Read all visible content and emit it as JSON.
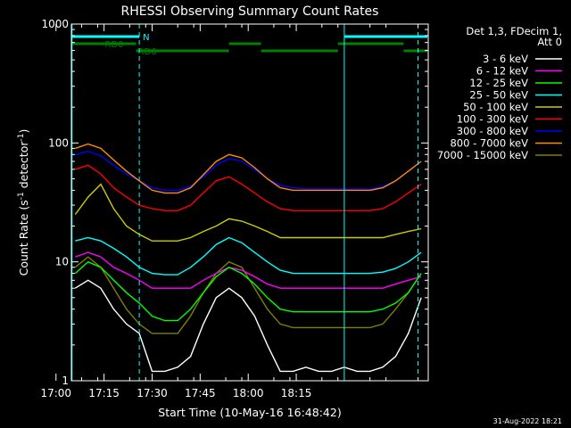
{
  "chart_data": {
    "type": "line",
    "title": "RHESSI Observing Summary Count Rates",
    "xlabel": "Start Time (10-May-16 16:48:42)",
    "ylabel": "Count Rate (s⁻¹ detector⁻¹)",
    "ylabel_parts": [
      "Count Rate (s",
      "-1",
      " detector",
      "-1",
      ")"
    ],
    "y_scale": "log",
    "ylim": [
      1,
      1000
    ],
    "xlim_minutes": [
      16.8,
      128.2
    ],
    "x_ticks": [
      {
        "minute": 12,
        "label": "17:00"
      },
      {
        "minute": 27,
        "label": "17:15"
      },
      {
        "minute": 42,
        "label": "17:30"
      },
      {
        "minute": 57,
        "label": "17:45"
      },
      {
        "minute": 72,
        "label": "18:00"
      },
      {
        "minute": 87,
        "label": "18:15"
      }
    ],
    "y_ticks": [
      {
        "value": 1,
        "label": "1"
      },
      {
        "value": 10,
        "label": "10"
      },
      {
        "value": 100,
        "label": "100"
      },
      {
        "value": 1000,
        "label": "1000"
      }
    ],
    "legend_header": [
      "Det 1,3, FDecim 1,",
      "Att 0"
    ],
    "legend_placement": "right",
    "timestamp": "31-Aug-2022 18:21",
    "flags": [
      {
        "label": "N",
        "color": "#00ffff",
        "segments": [
          [
            16.8,
            38.0
          ],
          [
            102.0,
            128.2
          ]
        ],
        "level": 0
      },
      {
        "label": "RD0",
        "color": "#008000",
        "segments": [
          [
            16.8,
            37.0
          ],
          [
            66.0,
            76.0
          ],
          [
            100.0,
            120.5
          ]
        ],
        "level": 1
      },
      {
        "label": "RD6",
        "color": "#008000",
        "segments": [
          [
            37.0,
            66.0
          ],
          [
            76.0,
            100.0
          ],
          [
            120.5,
            128.2
          ]
        ],
        "level": 2
      }
    ],
    "vertical_markers": [
      {
        "x": 17.0,
        "style": "solid",
        "color": "#00ffff"
      },
      {
        "x": 38.0,
        "style": "dashed",
        "color": "#00ffff"
      },
      {
        "x": 102.0,
        "style": "solid",
        "color": "#00ffff"
      },
      {
        "x": 125.0,
        "style": "dashed",
        "color": "#00ffff"
      }
    ],
    "series": [
      {
        "name": "3 - 6 keV",
        "color": "#ffffff",
        "x": [
          18,
          22,
          26,
          30,
          34,
          38,
          42,
          46,
          50,
          54,
          58,
          62,
          66,
          70,
          74,
          78,
          82,
          86,
          90,
          94,
          98,
          102,
          106,
          110,
          114,
          118,
          122,
          126
        ],
        "y": [
          6,
          7,
          6,
          4,
          3,
          2.5,
          1.2,
          1.2,
          1.3,
          1.6,
          3,
          5,
          6,
          5,
          3.5,
          2,
          1.2,
          1.2,
          1.3,
          1.2,
          1.2,
          1.3,
          1.2,
          1.2,
          1.3,
          1.6,
          2.5,
          5
        ]
      },
      {
        "name": "6 - 12 keV",
        "color": "#ff00ff",
        "x": [
          18,
          22,
          26,
          30,
          34,
          38,
          42,
          46,
          50,
          54,
          58,
          62,
          66,
          70,
          74,
          78,
          82,
          86,
          90,
          94,
          98,
          102,
          106,
          110,
          114,
          118,
          122,
          126
        ],
        "y": [
          11,
          12,
          11,
          9,
          8,
          7,
          6,
          6,
          6,
          6,
          7,
          8,
          9,
          8.5,
          7.5,
          6.5,
          6,
          6,
          6,
          6,
          6,
          6,
          6,
          6,
          6,
          6.5,
          7,
          7.5
        ]
      },
      {
        "name": "12 - 25 keV",
        "color": "#00ff00",
        "x": [
          18,
          22,
          26,
          30,
          34,
          38,
          42,
          46,
          50,
          54,
          58,
          62,
          66,
          70,
          74,
          78,
          82,
          86,
          90,
          94,
          98,
          102,
          106,
          110,
          114,
          118,
          122,
          126
        ],
        "y": [
          8,
          10,
          9,
          7,
          5.5,
          4.5,
          3.5,
          3.2,
          3.2,
          4,
          5.5,
          7.5,
          9,
          8,
          6.5,
          5,
          4,
          3.8,
          3.8,
          3.8,
          3.8,
          3.8,
          3.8,
          3.8,
          4,
          4.5,
          5.5,
          8
        ]
      },
      {
        "name": "25 - 50 keV",
        "color": "#00ffff",
        "x": [
          18,
          22,
          26,
          30,
          34,
          38,
          42,
          46,
          50,
          54,
          58,
          62,
          66,
          70,
          74,
          78,
          82,
          86,
          90,
          94,
          98,
          102,
          106,
          110,
          114,
          118,
          122,
          126
        ],
        "y": [
          15,
          16,
          15,
          13,
          11,
          9,
          8,
          7.8,
          7.8,
          9,
          11,
          14,
          16,
          14.5,
          12,
          10,
          8.5,
          8,
          8,
          8,
          8,
          8,
          8,
          8,
          8.2,
          8.8,
          10,
          12
        ]
      },
      {
        "name": "50 - 100 keV",
        "color": "#cccc00",
        "x": [
          18,
          22,
          26,
          30,
          34,
          38,
          42,
          46,
          50,
          54,
          58,
          62,
          66,
          70,
          74,
          78,
          82,
          86,
          90,
          94,
          98,
          102,
          106,
          110,
          114,
          118,
          122,
          126
        ],
        "y": [
          25,
          35,
          45,
          28,
          20,
          17,
          15,
          15,
          15,
          16,
          18,
          20,
          23,
          22,
          20,
          18,
          16,
          16,
          16,
          16,
          16,
          16,
          16,
          16,
          16,
          17,
          18,
          19
        ]
      },
      {
        "name": "100 - 300 keV",
        "color": "#ff0000",
        "x": [
          18,
          22,
          26,
          30,
          34,
          38,
          42,
          46,
          50,
          54,
          58,
          62,
          66,
          70,
          74,
          78,
          82,
          86,
          90,
          94,
          98,
          102,
          106,
          110,
          114,
          118,
          122,
          126
        ],
        "y": [
          60,
          65,
          55,
          42,
          35,
          30,
          28,
          27,
          27,
          30,
          38,
          48,
          52,
          45,
          38,
          32,
          28,
          27,
          27,
          27,
          27,
          27,
          27,
          27,
          28,
          32,
          38,
          45
        ]
      },
      {
        "name": "300 - 800 keV",
        "color": "#0000ff",
        "x": [
          18,
          22,
          26,
          30,
          34,
          38,
          42,
          46,
          50,
          54,
          58,
          62,
          66,
          70,
          74,
          78,
          82,
          86,
          90,
          94,
          98,
          102,
          106,
          110,
          114,
          118,
          122,
          126
        ],
        "y": [
          80,
          85,
          78,
          65,
          55,
          48,
          42,
          40,
          40,
          43,
          52,
          65,
          74,
          70,
          60,
          50,
          44,
          42,
          41,
          41,
          41,
          41,
          41,
          41,
          43,
          48,
          58,
          70
        ]
      },
      {
        "name": "800 - 7000 keV",
        "color": "#ff8c00",
        "x": [
          18,
          22,
          26,
          30,
          34,
          38,
          42,
          46,
          50,
          54,
          58,
          62,
          66,
          70,
          74,
          78,
          82,
          86,
          90,
          94,
          98,
          102,
          106,
          110,
          114,
          118,
          122,
          126
        ],
        "y": [
          90,
          98,
          90,
          72,
          58,
          48,
          40,
          38,
          38,
          42,
          54,
          70,
          80,
          75,
          62,
          50,
          42,
          40,
          40,
          40,
          40,
          40,
          40,
          40,
          42,
          48,
          58,
          70
        ]
      },
      {
        "name": "7000 - 15000 keV",
        "color": "#808000",
        "x": [
          18,
          22,
          26,
          30,
          34,
          38,
          42,
          46,
          50,
          54,
          58,
          62,
          66,
          70,
          74,
          78,
          82,
          86,
          90,
          94,
          98,
          102,
          106,
          110,
          114,
          118,
          122,
          126
        ],
        "y": [
          9,
          11,
          9,
          6,
          4,
          3,
          2.5,
          2.5,
          2.5,
          3.5,
          5.5,
          8,
          10,
          9,
          6,
          4,
          3,
          2.8,
          2.8,
          2.8,
          2.8,
          2.8,
          2.8,
          2.8,
          3,
          4,
          5.5,
          8
        ]
      }
    ]
  }
}
